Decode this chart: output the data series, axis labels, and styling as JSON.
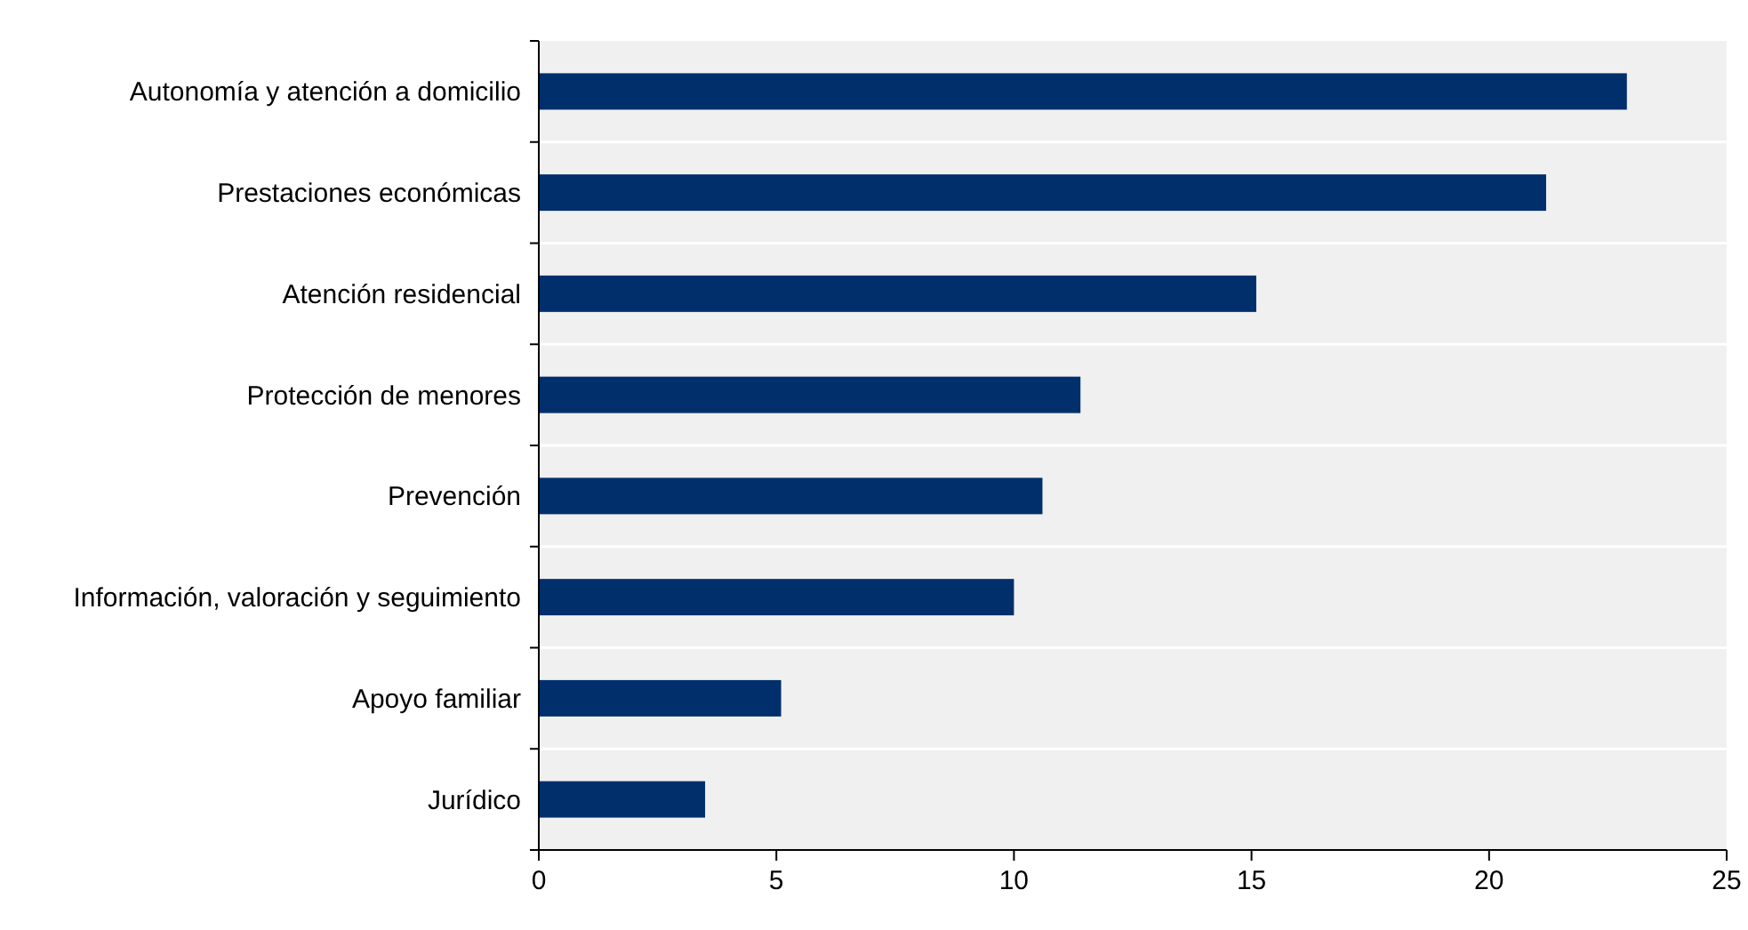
{
  "chart_data": {
    "type": "bar",
    "orientation": "horizontal",
    "categories": [
      "Autonomía y atención a domicilio",
      "Prestaciones económicas",
      "Atención residencial",
      "Protección de menores",
      "Prevención",
      "Información, valoración y seguimiento",
      "Apoyo familiar",
      "Jurídico"
    ],
    "values": [
      22.9,
      21.2,
      15.1,
      11.4,
      10.6,
      10.0,
      5.1,
      3.5
    ],
    "color": "#002f6c",
    "xlim": [
      0,
      25
    ],
    "xticks": [
      0,
      5,
      10,
      15,
      20,
      25
    ],
    "grid": "y"
  }
}
